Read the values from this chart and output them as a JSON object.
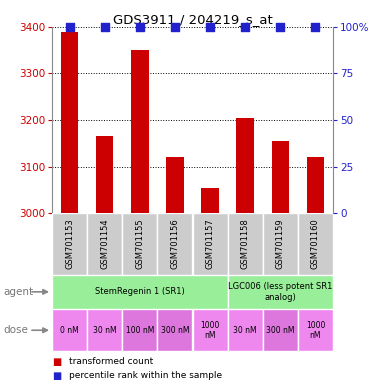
{
  "title": "GDS3911 / 204219_s_at",
  "samples": [
    "GSM701153",
    "GSM701154",
    "GSM701155",
    "GSM701156",
    "GSM701157",
    "GSM701158",
    "GSM701159",
    "GSM701160"
  ],
  "bar_values": [
    3390,
    3165,
    3350,
    3120,
    3055,
    3205,
    3155,
    3120
  ],
  "percentile_values": [
    100,
    100,
    100,
    100,
    100,
    100,
    100,
    100
  ],
  "ylim_left": [
    3000,
    3400
  ],
  "ylim_right": [
    0,
    100
  ],
  "yticks_left": [
    3000,
    3100,
    3200,
    3300,
    3400
  ],
  "yticks_right": [
    0,
    25,
    50,
    75,
    100
  ],
  "bar_color": "#cc0000",
  "dot_color": "#2222cc",
  "agent_groups": [
    {
      "label": "StemRegenin 1 (SR1)",
      "start": 0,
      "end": 5,
      "color": "#99ee99"
    },
    {
      "label": "LGC006 (less potent SR1\nanalog)",
      "start": 5,
      "end": 8,
      "color": "#99ee99"
    }
  ],
  "dose_cells": [
    {
      "label": "0 nM",
      "start": 0,
      "end": 1,
      "color": "#ee88ee"
    },
    {
      "label": "30 nM",
      "start": 1,
      "end": 2,
      "color": "#ee88ee"
    },
    {
      "label": "100 nM",
      "start": 2,
      "end": 3,
      "color": "#dd77dd"
    },
    {
      "label": "300 nM",
      "start": 3,
      "end": 4,
      "color": "#dd77dd"
    },
    {
      "label": "1000\nnM",
      "start": 4,
      "end": 5,
      "color": "#ee88ee"
    },
    {
      "label": "30 nM",
      "start": 5,
      "end": 6,
      "color": "#ee88ee"
    },
    {
      "label": "300 nM",
      "start": 6,
      "end": 7,
      "color": "#dd77dd"
    },
    {
      "label": "1000\nnM",
      "start": 7,
      "end": 8,
      "color": "#ee88ee"
    }
  ],
  "sample_bg_color": "#cccccc",
  "sample_border_color": "#ffffff",
  "legend_items": [
    {
      "color": "#cc0000",
      "label": "transformed count"
    },
    {
      "color": "#2222cc",
      "label": "percentile rank within the sample"
    }
  ],
  "left_tick_color": "#cc0000",
  "right_tick_color": "#2222cc",
  "bar_width": 0.5,
  "dot_size": 40,
  "dot_marker": "s",
  "right_ytick_labels": [
    "0",
    "25",
    "50",
    "75",
    "100%"
  ]
}
